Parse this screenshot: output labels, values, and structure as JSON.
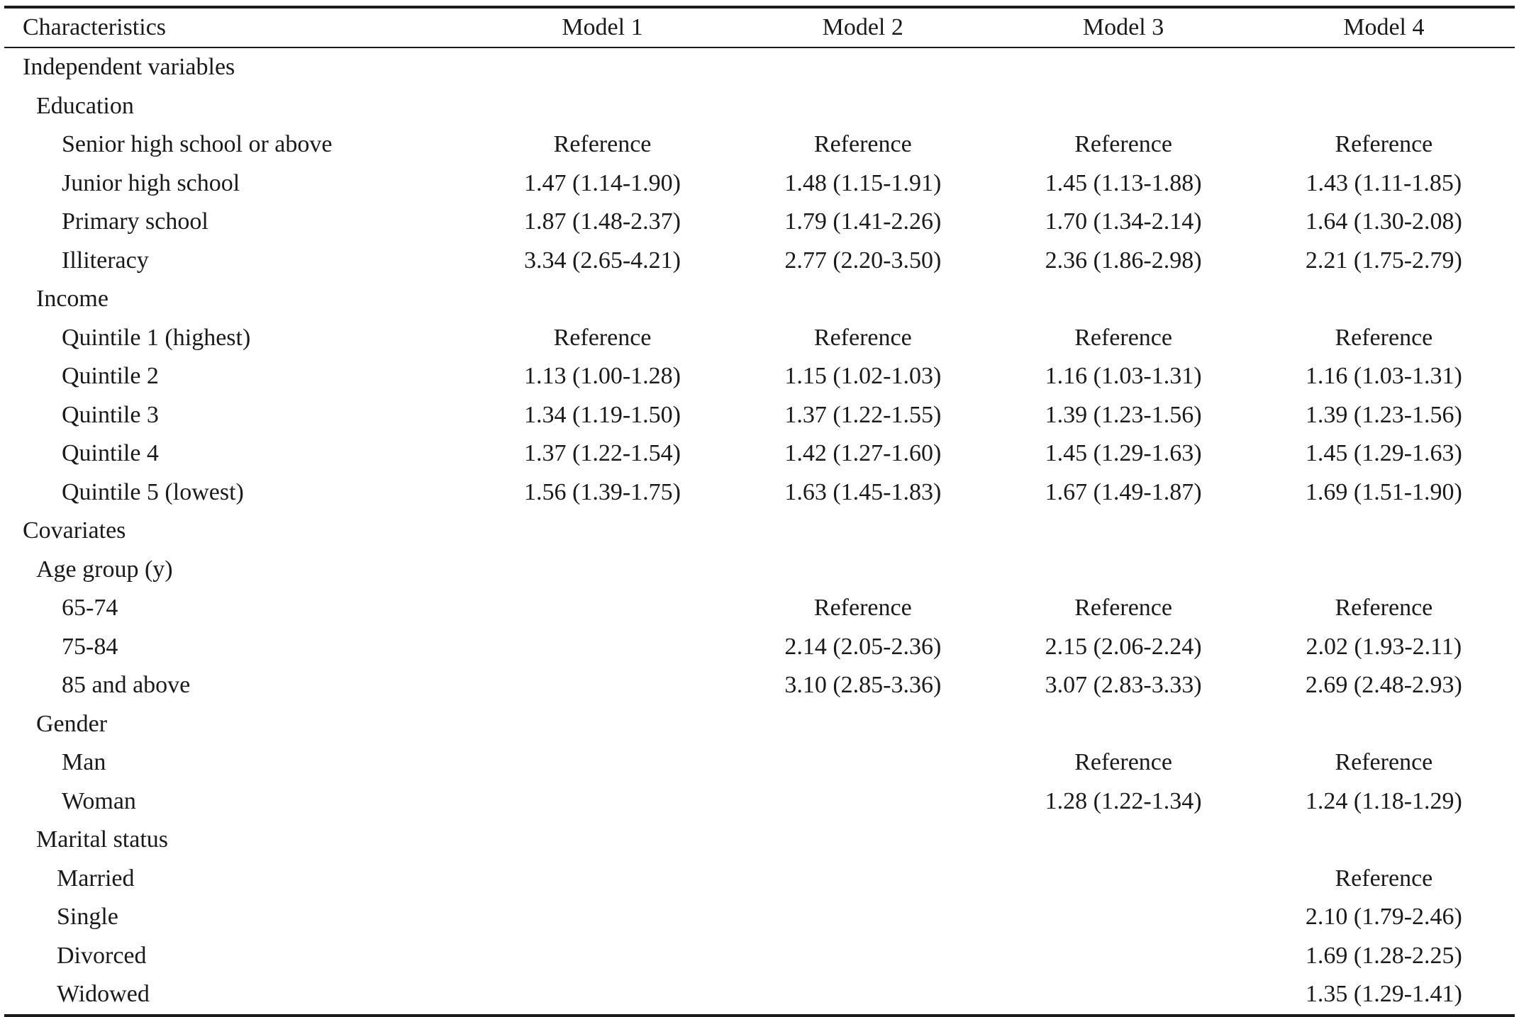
{
  "header": {
    "characteristics": "Characteristics",
    "models": [
      "Model 1",
      "Model 2",
      "Model 3",
      "Model 4"
    ]
  },
  "rows": [
    {
      "label": "Independent variables",
      "level": 0,
      "values": [
        "",
        "",
        "",
        ""
      ]
    },
    {
      "label": "Education",
      "level": 1,
      "values": [
        "",
        "",
        "",
        ""
      ]
    },
    {
      "label": "Senior high school or above",
      "level": 2,
      "values": [
        "Reference",
        "Reference",
        "Reference",
        "Reference"
      ]
    },
    {
      "label": "Junior high school",
      "level": 2,
      "values": [
        "1.47 (1.14-1.90)",
        "1.48 (1.15-1.91)",
        "1.45 (1.13-1.88)",
        "1.43 (1.11-1.85)"
      ]
    },
    {
      "label": "Primary school",
      "level": 2,
      "values": [
        "1.87 (1.48-2.37)",
        "1.79 (1.41-2.26)",
        "1.70 (1.34-2.14)",
        "1.64 (1.30-2.08)"
      ]
    },
    {
      "label": "Illiteracy",
      "level": 2,
      "values": [
        "3.34 (2.65-4.21)",
        "2.77 (2.20-3.50)",
        "2.36 (1.86-2.98)",
        "2.21 (1.75-2.79)"
      ]
    },
    {
      "label": "Income",
      "level": 1,
      "values": [
        "",
        "",
        "",
        ""
      ]
    },
    {
      "label": "Quintile 1 (highest)",
      "level": 2,
      "values": [
        "Reference",
        "Reference",
        "Reference",
        "Reference"
      ]
    },
    {
      "label": "Quintile 2",
      "level": 2,
      "values": [
        "1.13 (1.00-1.28)",
        "1.15 (1.02-1.03)",
        "1.16 (1.03-1.31)",
        "1.16 (1.03-1.31)"
      ]
    },
    {
      "label": "Quintile 3",
      "level": 2,
      "values": [
        "1.34 (1.19-1.50)",
        "1.37 (1.22-1.55)",
        "1.39 (1.23-1.56)",
        "1.39 (1.23-1.56)"
      ]
    },
    {
      "label": "Quintile 4",
      "level": 2,
      "values": [
        "1.37 (1.22-1.54)",
        "1.42 (1.27-1.60)",
        "1.45 (1.29-1.63)",
        "1.45 (1.29-1.63)"
      ]
    },
    {
      "label": "Quintile 5 (lowest)",
      "level": 2,
      "values": [
        "1.56 (1.39-1.75)",
        "1.63 (1.45-1.83)",
        "1.67 (1.49-1.87)",
        "1.69 (1.51-1.90)"
      ]
    },
    {
      "label": "Covariates",
      "level": 0,
      "values": [
        "",
        "",
        "",
        ""
      ]
    },
    {
      "label": "Age group (y)",
      "level": 1,
      "values": [
        "",
        "",
        "",
        ""
      ]
    },
    {
      "label": "65-74",
      "level": 2,
      "values": [
        "",
        "Reference",
        "Reference",
        "Reference"
      ]
    },
    {
      "label": "75-84",
      "level": 2,
      "values": [
        "",
        "2.14 (2.05-2.36)",
        "2.15 (2.06-2.24)",
        "2.02 (1.93-2.11)"
      ]
    },
    {
      "label": "85 and above",
      "level": 2,
      "values": [
        "",
        "3.10 (2.85-3.36)",
        "3.07 (2.83-3.33)",
        "2.69 (2.48-2.93)"
      ]
    },
    {
      "label": "Gender",
      "level": 1,
      "values": [
        "",
        "",
        "",
        ""
      ]
    },
    {
      "label": "Man",
      "level": 2,
      "values": [
        "",
        "",
        "Reference",
        "Reference"
      ]
    },
    {
      "label": "Woman",
      "level": 2,
      "values": [
        "",
        "",
        "1.28 (1.22-1.34)",
        "1.24 (1.18-1.29)"
      ]
    },
    {
      "label": "Marital status",
      "level": 1,
      "values": [
        "",
        "",
        "",
        ""
      ]
    },
    {
      "label": "Married",
      "level": 3,
      "values": [
        "",
        "",
        "",
        "Reference"
      ]
    },
    {
      "label": "Single",
      "level": 3,
      "values": [
        "",
        "",
        "",
        "2.10 (1.79-2.46)"
      ]
    },
    {
      "label": "Divorced",
      "level": 3,
      "values": [
        "",
        "",
        "",
        "1.69 (1.28-2.25)"
      ]
    },
    {
      "label": "Widowed",
      "level": 3,
      "values": [
        "",
        "",
        "",
        "1.35 (1.29-1.41)"
      ]
    }
  ]
}
